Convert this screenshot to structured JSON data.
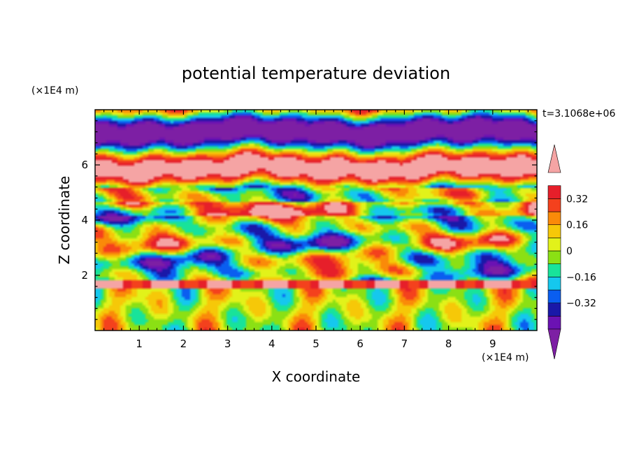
{
  "chart_data": {
    "type": "heatmap",
    "title": "potential temperature deviation",
    "time_label": "t=3.1068e+06",
    "xlabel": "X coordinate",
    "ylabel": "Z coordinate",
    "x_unit": "(×1E4 m)",
    "y_unit": "(×1E4 m)",
    "xlim": [
      0,
      10
    ],
    "ylim": [
      0,
      8
    ],
    "x_ticks": [
      1,
      2,
      3,
      4,
      5,
      6,
      7,
      8,
      9
    ],
    "y_ticks": [
      2,
      4,
      6
    ],
    "colorbar": {
      "levels": [
        -0.48,
        -0.4,
        -0.32,
        -0.24,
        -0.16,
        -0.08,
        0,
        0.08,
        0.16,
        0.24,
        0.32,
        0.4,
        0.48
      ],
      "tick_values": [
        0.32,
        0.16,
        0,
        -0.16,
        -0.32
      ],
      "tick_labels": [
        "0.32",
        "0.16",
        "0",
        "−0.16",
        "−0.32"
      ],
      "extend": "both",
      "colors": [
        "#7d1fa4",
        "#6b12b3",
        "#1a18a8",
        "#0a5ef0",
        "#15c8ee",
        "#18e39a",
        "#8be014",
        "#e2f21a",
        "#f6c808",
        "#fa8a09",
        "#f4411d",
        "#e61f2a",
        "#f5a4a4"
      ]
    }
  }
}
